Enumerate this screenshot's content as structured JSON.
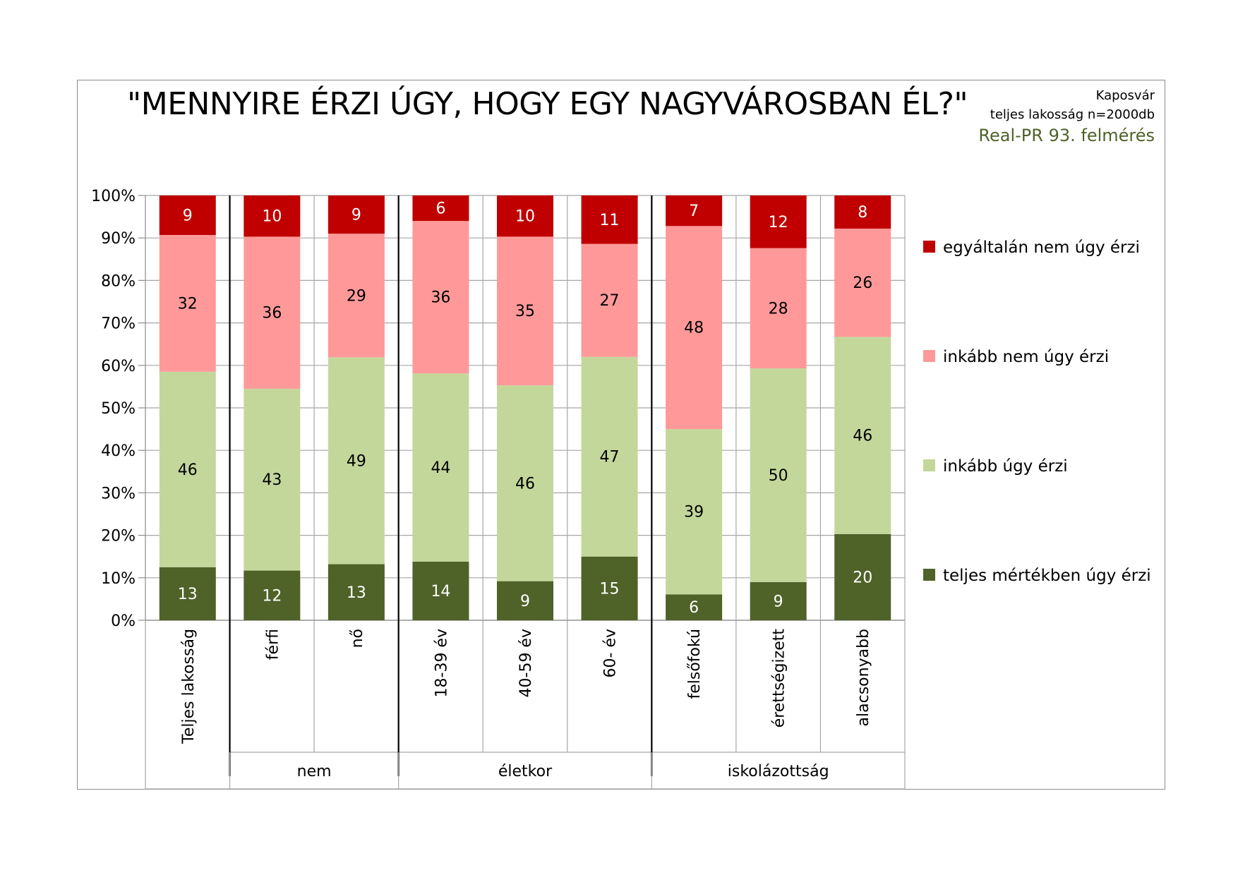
{
  "header": {
    "title": "\"MENNYIRE ÉRZI ÚGY, HOGY EGY NAGYVÁROSBAN ÉL?\"",
    "city": "Kaposvár",
    "sample": "teljes lakosság n=2000db",
    "survey": "Real-PR 93. felmérés"
  },
  "chart_data": {
    "type": "bar",
    "stacked": true,
    "title": "\"MENNYIRE ÉRZI ÚGY, HOGY EGY NAGYVÁROSBAN ÉL?\"",
    "categories": [
      "Teljes lakosság",
      "férfi",
      "nő",
      "18-39 év",
      "40-59 év",
      "60- év",
      "felsőfokú",
      "érettségizett",
      "alacsonyabb"
    ],
    "groups": [
      {
        "label": "",
        "categories": [
          "Teljes lakosság"
        ]
      },
      {
        "label": "nem",
        "categories": [
          "férfi",
          "nő"
        ]
      },
      {
        "label": "életkor",
        "categories": [
          "18-39 év",
          "40-59 év",
          "60- év"
        ]
      },
      {
        "label": "iskolázottság",
        "categories": [
          "felsőfokú",
          "érettségizett",
          "alacsonyabb"
        ]
      }
    ],
    "series": [
      {
        "name": "teljes mértékben úgy érzi",
        "color": "#4f6228",
        "label_color": "#ffffff",
        "values": [
          13,
          12,
          13,
          14,
          9,
          15,
          6,
          9,
          20
        ],
        "display": [
          12.5,
          11.7,
          13.2,
          13.8,
          9.2,
          15.0,
          6.1,
          9.0,
          20.3
        ]
      },
      {
        "name": "inkább úgy érzi",
        "color": "#c4d79b",
        "label_color": "#000000",
        "values": [
          46,
          43,
          49,
          44,
          46,
          47,
          39,
          50,
          46
        ],
        "display": [
          46.0,
          42.8,
          48.7,
          44.3,
          46.1,
          47.0,
          38.9,
          50.3,
          46.4
        ]
      },
      {
        "name": "inkább nem úgy érzi",
        "color": "#ff9999",
        "label_color": "#000000",
        "values": [
          32,
          36,
          29,
          36,
          35,
          27,
          48,
          28,
          26
        ],
        "display": [
          32.2,
          35.8,
          29.1,
          35.9,
          35.0,
          26.6,
          47.8,
          28.3,
          25.5
        ]
      },
      {
        "name": "egyáltalán nem úgy érzi",
        "color": "#c00000",
        "label_color": "#ffffff",
        "values": [
          9,
          10,
          9,
          6,
          10,
          11,
          7,
          12,
          8
        ],
        "display": [
          9.3,
          9.7,
          9.0,
          6.0,
          9.7,
          11.4,
          7.2,
          12.4,
          7.8
        ]
      }
    ],
    "yticks": [
      "0%",
      "10%",
      "20%",
      "30%",
      "40%",
      "50%",
      "60%",
      "70%",
      "80%",
      "90%",
      "100%"
    ],
    "ylim": [
      0,
      100
    ],
    "xlabel": "",
    "ylabel": "",
    "grid": true,
    "legend_position": "right"
  }
}
